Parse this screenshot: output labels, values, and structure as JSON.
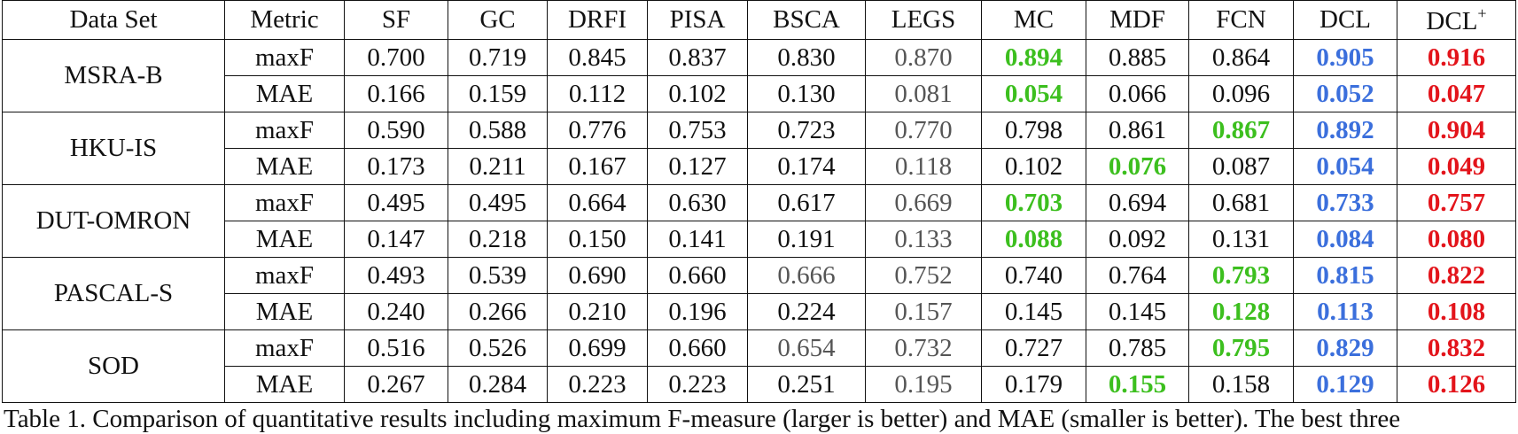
{
  "table": {
    "header": [
      {
        "text": "Data Set"
      },
      {
        "text": "Metric"
      },
      {
        "text": "SF"
      },
      {
        "text": "GC"
      },
      {
        "text": "DRFI"
      },
      {
        "text": "PISA"
      },
      {
        "text": "BSCA"
      },
      {
        "text": "LEGS"
      },
      {
        "text": "MC"
      },
      {
        "text": "MDF"
      },
      {
        "text": "FCN"
      },
      {
        "text": "DCL"
      },
      {
        "text": "DCL",
        "sup": "+"
      }
    ],
    "palette": {
      "black": "#111111",
      "gray": "#555555",
      "green": "#3cbf1e",
      "blue": "#3b6fdc",
      "red": "#e3141b"
    },
    "bold": [
      "green",
      "blue",
      "red"
    ],
    "groups": [
      {
        "dataset": "MSRA-B",
        "rows": [
          {
            "metric": "maxF",
            "values": [
              "0.700",
              "0.719",
              "0.845",
              "0.837",
              "0.830",
              "0.870",
              "0.894",
              "0.885",
              "0.864",
              "0.905",
              "0.916"
            ],
            "colors": [
              "black",
              "black",
              "black",
              "black",
              "black",
              "gray",
              "green",
              "black",
              "black",
              "blue",
              "red"
            ]
          },
          {
            "metric": "MAE",
            "values": [
              "0.166",
              "0.159",
              "0.112",
              "0.102",
              "0.130",
              "0.081",
              "0.054",
              "0.066",
              "0.096",
              "0.052",
              "0.047"
            ],
            "colors": [
              "black",
              "black",
              "black",
              "black",
              "black",
              "gray",
              "green",
              "black",
              "black",
              "blue",
              "red"
            ]
          }
        ]
      },
      {
        "dataset": "HKU-IS",
        "rows": [
          {
            "metric": "maxF",
            "values": [
              "0.590",
              "0.588",
              "0.776",
              "0.753",
              "0.723",
              "0.770",
              "0.798",
              "0.861",
              "0.867",
              "0.892",
              "0.904"
            ],
            "colors": [
              "black",
              "black",
              "black",
              "black",
              "black",
              "gray",
              "black",
              "black",
              "green",
              "blue",
              "red"
            ]
          },
          {
            "metric": "MAE",
            "values": [
              "0.173",
              "0.211",
              "0.167",
              "0.127",
              "0.174",
              "0.118",
              "0.102",
              "0.076",
              "0.087",
              "0.054",
              "0.049"
            ],
            "colors": [
              "black",
              "black",
              "black",
              "black",
              "black",
              "gray",
              "black",
              "green",
              "black",
              "blue",
              "red"
            ]
          }
        ]
      },
      {
        "dataset": "DUT-OMRON",
        "rows": [
          {
            "metric": "maxF",
            "values": [
              "0.495",
              "0.495",
              "0.664",
              "0.630",
              "0.617",
              "0.669",
              "0.703",
              "0.694",
              "0.681",
              "0.733",
              "0.757"
            ],
            "colors": [
              "black",
              "black",
              "black",
              "black",
              "black",
              "gray",
              "green",
              "black",
              "black",
              "blue",
              "red"
            ]
          },
          {
            "metric": "MAE",
            "values": [
              "0.147",
              "0.218",
              "0.150",
              "0.141",
              "0.191",
              "0.133",
              "0.088",
              "0.092",
              "0.131",
              "0.084",
              "0.080"
            ],
            "colors": [
              "black",
              "black",
              "black",
              "black",
              "black",
              "gray",
              "green",
              "black",
              "black",
              "blue",
              "red"
            ]
          }
        ]
      },
      {
        "dataset": "PASCAL-S",
        "rows": [
          {
            "metric": "maxF",
            "values": [
              "0.493",
              "0.539",
              "0.690",
              "0.660",
              "0.666",
              "0.752",
              "0.740",
              "0.764",
              "0.793",
              "0.815",
              "0.822"
            ],
            "colors": [
              "black",
              "black",
              "black",
              "black",
              "gray",
              "gray",
              "black",
              "black",
              "green",
              "blue",
              "red"
            ]
          },
          {
            "metric": "MAE",
            "values": [
              "0.240",
              "0.266",
              "0.210",
              "0.196",
              "0.224",
              "0.157",
              "0.145",
              "0.145",
              "0.128",
              "0.113",
              "0.108"
            ],
            "colors": [
              "black",
              "black",
              "black",
              "black",
              "black",
              "gray",
              "black",
              "black",
              "green",
              "blue",
              "red"
            ]
          }
        ]
      },
      {
        "dataset": "SOD",
        "rows": [
          {
            "metric": "maxF",
            "values": [
              "0.516",
              "0.526",
              "0.699",
              "0.660",
              "0.654",
              "0.732",
              "0.727",
              "0.785",
              "0.795",
              "0.829",
              "0.832"
            ],
            "colors": [
              "black",
              "black",
              "black",
              "black",
              "gray",
              "gray",
              "black",
              "black",
              "green",
              "blue",
              "red"
            ]
          },
          {
            "metric": "MAE",
            "values": [
              "0.267",
              "0.284",
              "0.223",
              "0.223",
              "0.251",
              "0.195",
              "0.179",
              "0.155",
              "0.158",
              "0.129",
              "0.126"
            ],
            "colors": [
              "black",
              "black",
              "black",
              "black",
              "black",
              "gray",
              "black",
              "green",
              "black",
              "blue",
              "red"
            ]
          }
        ]
      }
    ],
    "caption": "Table 1. Comparison of quantitative results including maximum F-measure (larger is better) and MAE (smaller is better). The best three"
  }
}
